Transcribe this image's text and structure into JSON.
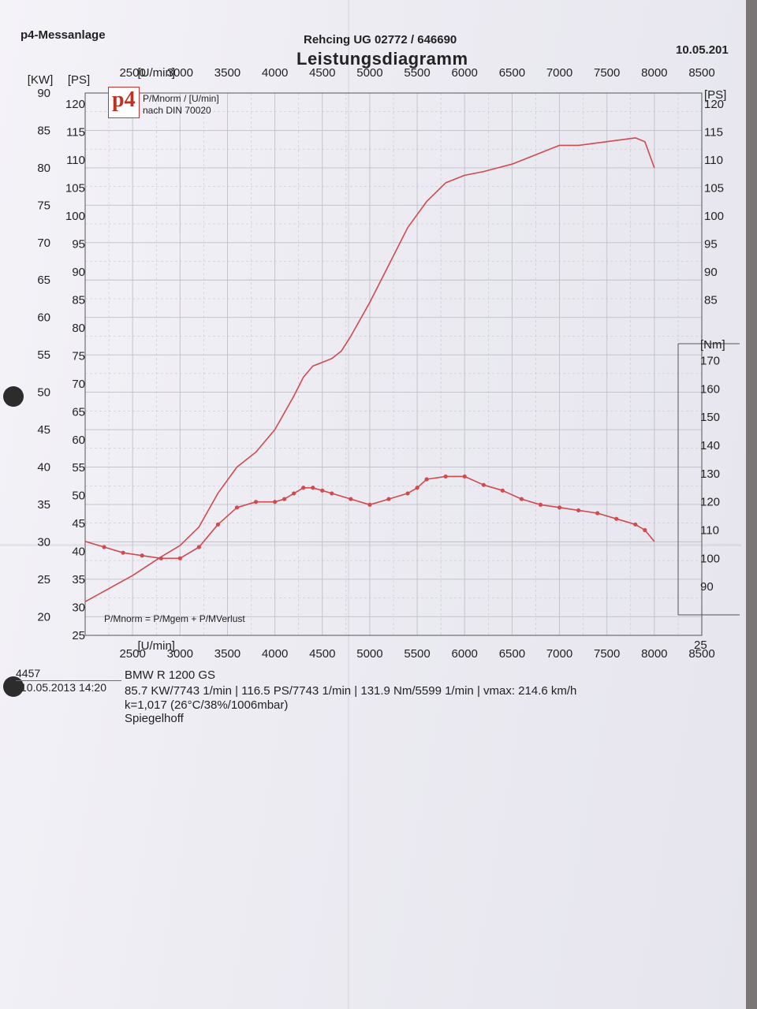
{
  "header": {
    "brand": "p4-Messanlage",
    "company": "Rehcing UG  02772 / 646690",
    "date": "10.05.201",
    "title": "Leistungsdiagramm"
  },
  "legend": {
    "logo_text": "p4",
    "line1": "P/Mnorm / [U/min]",
    "line2": "nach DIN 70020",
    "formula": "P/Mnorm = P/Mgem + P/MVerlust"
  },
  "footer": {
    "id": "4457",
    "timestamp": "10.05.2013  14:20",
    "vehicle": "BMW R 1200 GS",
    "results": "85.7 KW/7743 1/min  |  116.5 PS/7743 1/min  |  131.9 Nm/5599 1/min | vmax: 214.6 km/h",
    "conditions": "k=1,017 (26°C/38%/1006mbar)",
    "operator": "Spiegelhoff"
  },
  "colors": {
    "curve": "#d04a4e",
    "grid": "#bfbfca",
    "axis": "#555555"
  },
  "chart_data": {
    "type": "line",
    "title": "Leistungsdiagramm",
    "x_unit": "[U/min]",
    "x_range": [
      2000,
      8500
    ],
    "x_ticks": [
      2500,
      3000,
      3500,
      4000,
      4500,
      5000,
      5500,
      6000,
      6500,
      7000,
      7500,
      8000,
      8500
    ],
    "kw_axis": {
      "unit": "[KW]",
      "range": [
        17.5,
        90
      ],
      "ticks": [
        20,
        25,
        30,
        35,
        40,
        45,
        50,
        55,
        60,
        65,
        70,
        75,
        80,
        85,
        90
      ]
    },
    "ps_axis": {
      "unit": "[PS]",
      "range": [
        25,
        122
      ],
      "ticks": [
        25,
        30,
        35,
        40,
        45,
        50,
        55,
        60,
        65,
        70,
        75,
        80,
        85,
        90,
        95,
        100,
        105,
        110,
        115,
        120
      ]
    },
    "ps_axis_right": {
      "unit": "[PS]",
      "ticks": [
        85,
        90,
        95,
        100,
        105,
        110,
        115,
        120
      ]
    },
    "nm_axis": {
      "unit": "[Nm]",
      "range": [
        80,
        176
      ],
      "ticks": [
        90,
        100,
        110,
        120,
        130,
        140,
        150,
        160,
        170
      ]
    },
    "bottom_right_label": "25",
    "series": [
      {
        "axis": "kw",
        "x": [
          2000,
          2500,
          2800,
          3000,
          3200,
          3400,
          3600,
          3800,
          4000,
          4200,
          4300,
          4400,
          4500,
          4600,
          4700,
          4800,
          5000,
          5200,
          5400,
          5600,
          5800,
          6000,
          6200,
          6500,
          6800,
          7000,
          7200,
          7500,
          7800,
          7900,
          8000
        ],
        "y": [
          22.0,
          25.5,
          28.0,
          29.5,
          32.0,
          36.5,
          40.0,
          42.0,
          45.0,
          49.5,
          52.0,
          53.5,
          54.0,
          54.5,
          55.5,
          57.5,
          62.0,
          67.0,
          72.0,
          75.5,
          78.0,
          79.0,
          79.5,
          80.5,
          82.0,
          83.0,
          83.0,
          83.5,
          84.0,
          83.5,
          80.0
        ]
      },
      {
        "axis": "nm",
        "x": [
          2000,
          2200,
          2400,
          2600,
          2800,
          3000,
          3200,
          3400,
          3600,
          3800,
          4000,
          4100,
          4200,
          4300,
          4400,
          4500,
          4600,
          4800,
          5000,
          5200,
          5400,
          5500,
          5600,
          5800,
          6000,
          6200,
          6400,
          6600,
          6800,
          7000,
          7200,
          7400,
          7600,
          7800,
          7900,
          8000
        ],
        "y": [
          106,
          104,
          102,
          101,
          100,
          100,
          104,
          112,
          118,
          120,
          120,
          121,
          123,
          125,
          125,
          124,
          123,
          121,
          119,
          121,
          123,
          125,
          128,
          129,
          129,
          126,
          124,
          121,
          119,
          118,
          117,
          116,
          114,
          112,
          110,
          106
        ]
      }
    ]
  }
}
